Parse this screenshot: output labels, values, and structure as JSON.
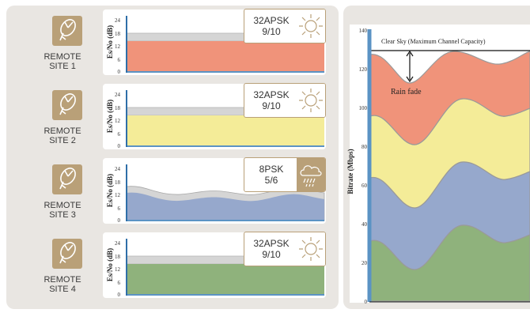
{
  "sites": [
    {
      "label_line1": "REMOTE",
      "label_line2": "SITE 1",
      "modulation": "32APSK",
      "code_rate": "9/10",
      "weather": "sun-icon"
    },
    {
      "label_line1": "REMOTE",
      "label_line2": "SITE 2",
      "modulation": "32APSK",
      "code_rate": "9/10",
      "weather": "sun-icon"
    },
    {
      "label_line1": "REMOTE",
      "label_line2": "SITE 3",
      "modulation": "8PSK",
      "code_rate": "5/6",
      "weather": "rain-cloud-icon"
    },
    {
      "label_line1": "REMOTE",
      "label_line2": "SITE 4",
      "modulation": "32APSK",
      "code_rate": "9/10",
      "weather": "sun-icon"
    }
  ],
  "site_chart": {
    "ylabel": "Es/No (dB)",
    "yticks": [
      "24",
      "18",
      "12",
      "6",
      "0"
    ]
  },
  "main_chart": {
    "ylabel": "Bitrate (Mbps)",
    "yticks": [
      "140",
      "120",
      "100",
      "80",
      "60",
      "40",
      "20",
      "0"
    ],
    "annotation_top": "Clear Sky (Maximum Channel Capacity)",
    "annotation_fade": "Rain fade"
  },
  "colors": {
    "site1": "#f0937a",
    "site2": "#f4ec98",
    "site3": "#96a8cc",
    "site4": "#8fb27c",
    "accent": "#b9a078",
    "axis": "#5b93c4"
  }
}
